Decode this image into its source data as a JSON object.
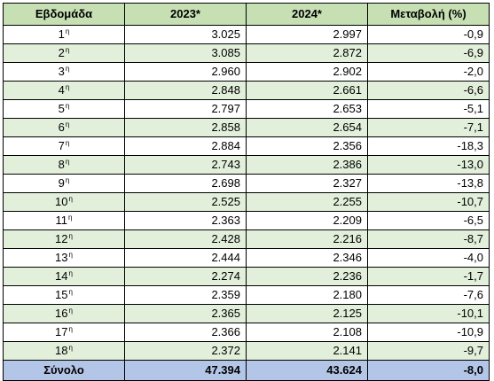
{
  "table": {
    "headers": [
      "Εβδομάδα",
      "2023*",
      "2024*",
      "Μεταβολή (%)"
    ],
    "rows": [
      {
        "week": "1",
        "suffix": "η",
        "y2023": "3.025",
        "y2024": "2.997",
        "change": "-0,9"
      },
      {
        "week": "2",
        "suffix": "η",
        "y2023": "3.085",
        "y2024": "2.872",
        "change": "-6,9"
      },
      {
        "week": "3",
        "suffix": "η",
        "y2023": "2.960",
        "y2024": "2.902",
        "change": "-2,0"
      },
      {
        "week": "4",
        "suffix": "η",
        "y2023": "2.848",
        "y2024": "2.661",
        "change": "-6,6"
      },
      {
        "week": "5",
        "suffix": "η",
        "y2023": "2.797",
        "y2024": "2.653",
        "change": "-5,1"
      },
      {
        "week": "6",
        "suffix": "η",
        "y2023": "2.858",
        "y2024": "2.654",
        "change": "-7,1"
      },
      {
        "week": "7",
        "suffix": "η",
        "y2023": "2.884",
        "y2024": "2.356",
        "change": "-18,3"
      },
      {
        "week": "8",
        "suffix": "η",
        "y2023": "2.743",
        "y2024": "2.386",
        "change": "-13,0"
      },
      {
        "week": "9",
        "suffix": "η",
        "y2023": "2.698",
        "y2024": "2.327",
        "change": "-13,8"
      },
      {
        "week": "10",
        "suffix": "η",
        "y2023": "2.525",
        "y2024": "2.255",
        "change": "-10,7"
      },
      {
        "week": "11",
        "suffix": "η",
        "y2023": "2.363",
        "y2024": "2.209",
        "change": "-6,5"
      },
      {
        "week": "12",
        "suffix": "η",
        "y2023": "2.428",
        "y2024": "2.216",
        "change": "-8,7"
      },
      {
        "week": "13",
        "suffix": "η",
        "y2023": "2.444",
        "y2024": "2.346",
        "change": "-4,0"
      },
      {
        "week": "14",
        "suffix": "η",
        "y2023": "2.274",
        "y2024": "2.236",
        "change": "-1,7"
      },
      {
        "week": "15",
        "suffix": "η",
        "y2023": "2.359",
        "y2024": "2.180",
        "change": "-7,6"
      },
      {
        "week": "16",
        "suffix": "η",
        "y2023": "2.365",
        "y2024": "2.125",
        "change": "-10,1"
      },
      {
        "week": "17",
        "suffix": "η",
        "y2023": "2.366",
        "y2024": "2.108",
        "change": "-10,9"
      },
      {
        "week": "18",
        "suffix": "η",
        "y2023": "2.372",
        "y2024": "2.141",
        "change": "-9,7"
      }
    ],
    "total": {
      "label": "Σύνολο",
      "y2023": "47.394",
      "y2024": "43.624",
      "change": "-8,0"
    }
  },
  "colors": {
    "header_bg": "#c6e0b4",
    "row_even_bg": "#e2efda",
    "row_odd_bg": "#ffffff",
    "total_bg": "#b4c6e7",
    "border": "#000000"
  }
}
